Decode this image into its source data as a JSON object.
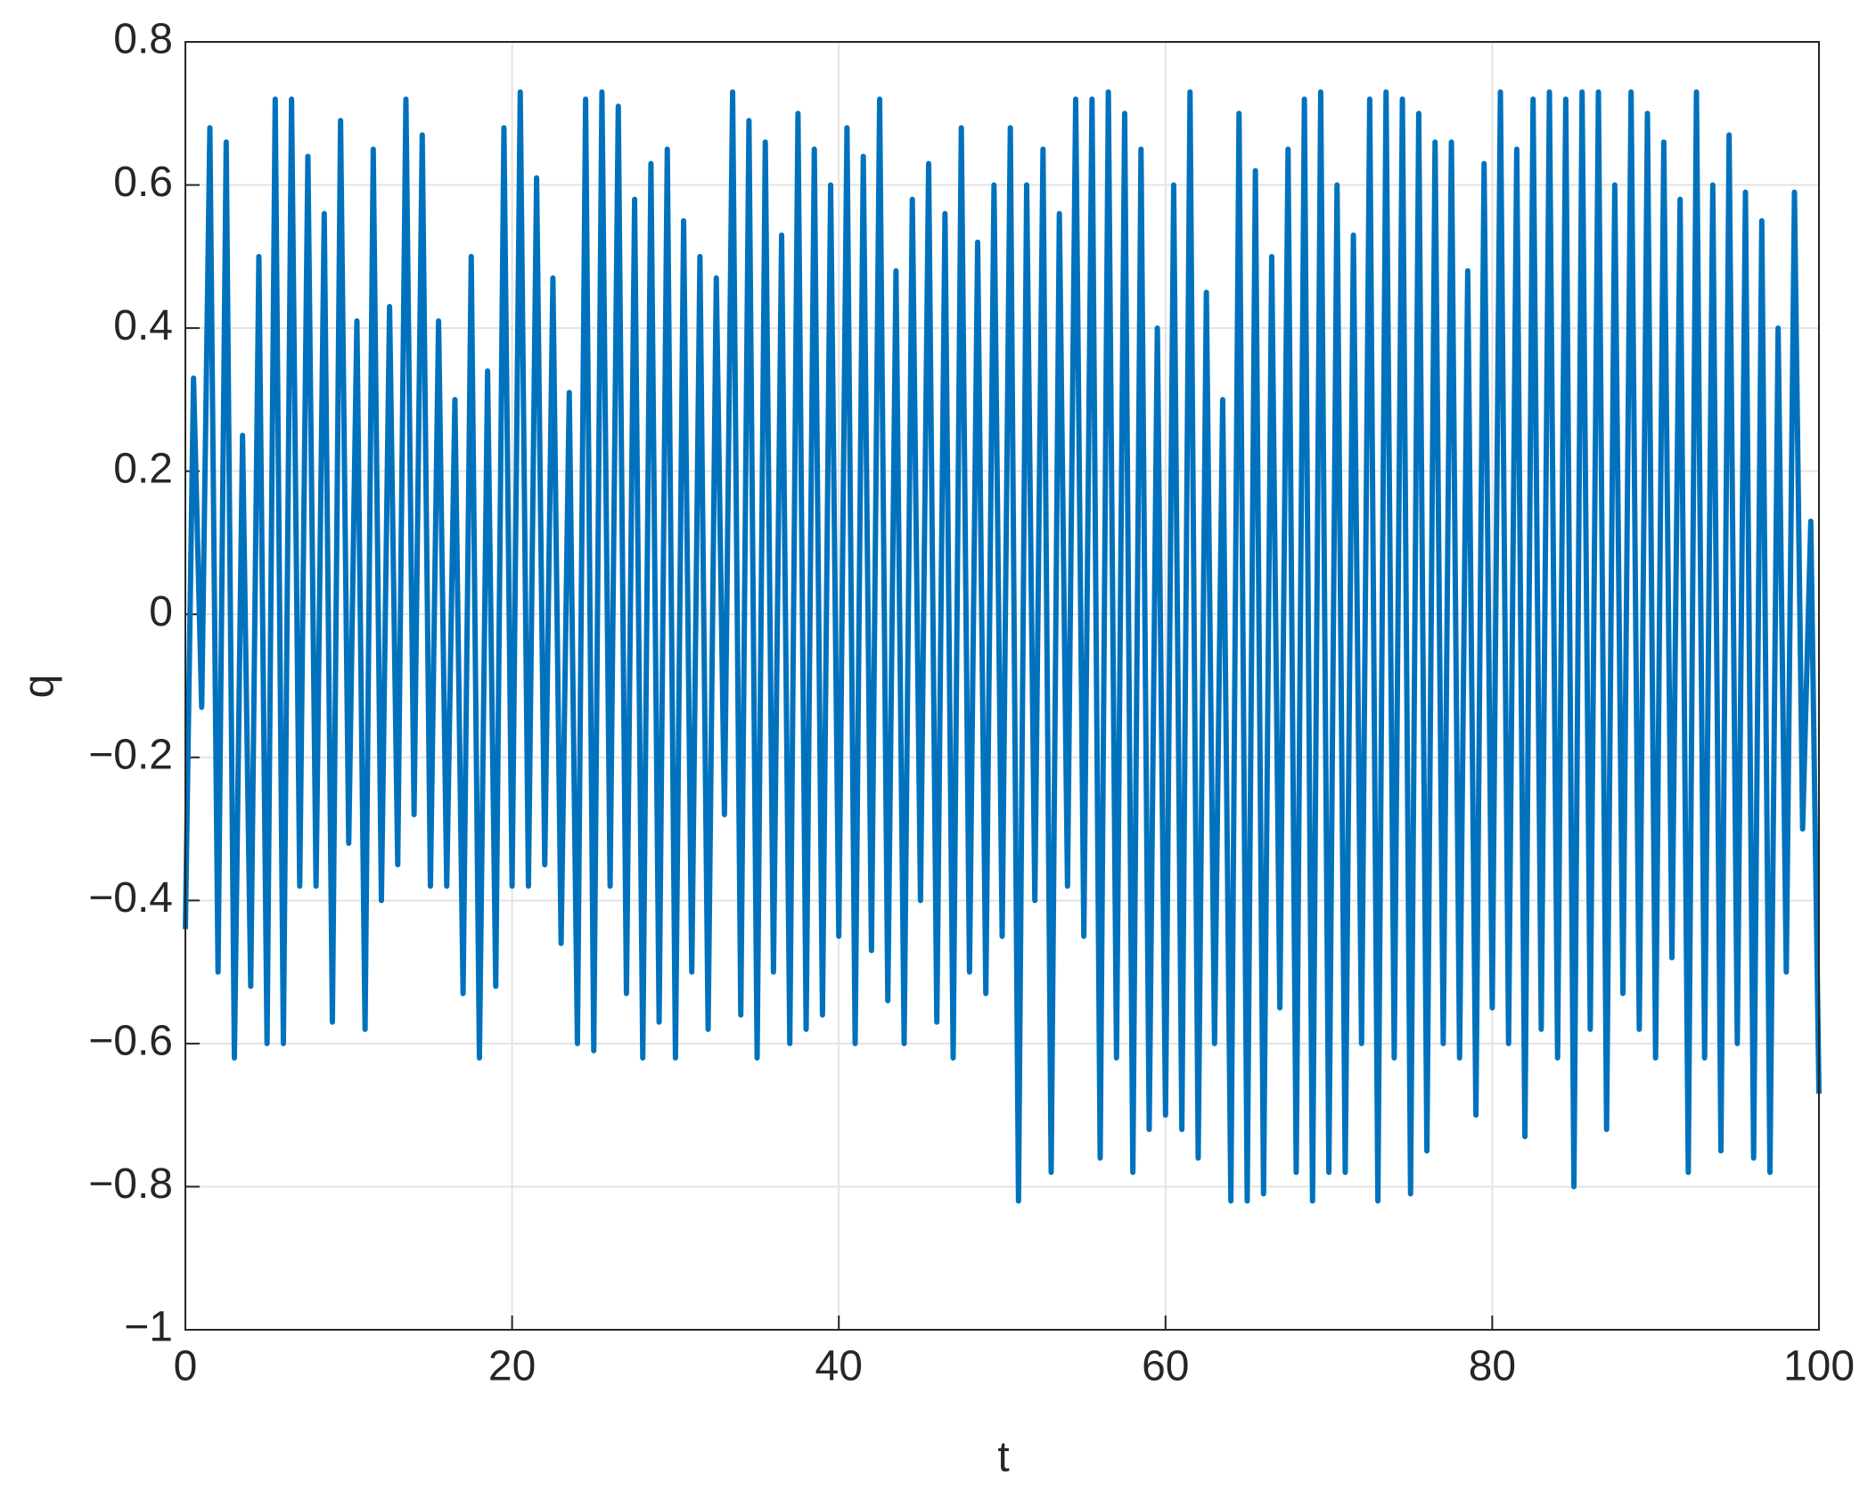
{
  "chart_data": {
    "type": "line",
    "xlabel": "t",
    "ylabel": "q",
    "xlim": [
      0,
      100
    ],
    "xticks": [
      0,
      20,
      40,
      60,
      80,
      100
    ],
    "ylim": [
      -1,
      0.8
    ],
    "yticks": [
      {
        "value": -1,
        "label": "−1"
      },
      {
        "value": -0.8,
        "label": "−0.8"
      },
      {
        "value": -0.6,
        "label": "−0.6"
      },
      {
        "value": -0.4,
        "label": "−0.4"
      },
      {
        "value": -0.2,
        "label": "−0.2"
      },
      0,
      0.2,
      0.4,
      0.6,
      0.8
    ],
    "grid": true,
    "x": [
      0,
      0.5,
      1,
      1.5,
      2,
      2.5,
      3,
      3.5,
      4,
      4.5,
      5,
      5.5,
      6,
      6.5,
      7,
      7.5,
      8,
      8.5,
      9,
      9.5,
      10,
      10.5,
      11,
      11.5,
      12,
      12.5,
      13,
      13.5,
      14,
      14.5,
      15,
      15.5,
      16,
      16.5,
      17,
      17.5,
      18,
      18.5,
      19,
      19.5,
      20,
      20.5,
      21,
      21.5,
      22,
      22.5,
      23,
      23.5,
      24,
      24.5,
      25,
      25.5,
      26,
      26.5,
      27,
      27.5,
      28,
      28.5,
      29,
      29.5,
      30,
      30.5,
      31,
      31.5,
      32,
      32.5,
      33,
      33.5,
      34,
      34.5,
      35,
      35.5,
      36,
      36.5,
      37,
      37.5,
      38,
      38.5,
      39,
      39.5,
      40,
      40.5,
      41,
      41.5,
      42,
      42.5,
      43,
      43.5,
      44,
      44.5,
      45,
      45.5,
      46,
      46.5,
      47,
      47.5,
      48,
      48.5,
      49,
      49.5,
      50,
      50.5,
      51,
      51.5,
      52,
      52.5,
      53,
      53.5,
      54,
      54.5,
      55,
      55.5,
      56,
      56.5,
      57,
      57.5,
      58,
      58.5,
      59,
      59.5,
      60,
      60.5,
      61,
      61.5,
      62,
      62.5,
      63,
      63.5,
      64,
      64.5,
      65,
      65.5,
      66,
      66.5,
      67,
      67.5,
      68,
      68.5,
      69,
      69.5,
      70,
      70.5,
      71,
      71.5,
      72,
      72.5,
      73,
      73.5,
      74,
      74.5,
      75,
      75.5,
      76,
      76.5,
      77,
      77.5,
      78,
      78.5,
      79,
      79.5,
      80,
      80.5,
      81,
      81.5,
      82,
      82.5,
      83,
      83.5,
      84,
      84.5,
      85,
      85.5,
      86,
      86.5,
      87,
      87.5,
      88,
      88.5,
      89,
      89.5,
      90,
      90.5,
      91,
      91.5,
      92,
      92.5,
      93,
      93.5,
      94,
      94.5,
      95,
      95.5,
      96,
      96.5,
      97,
      97.5,
      98,
      98.5,
      99,
      99.5,
      100
    ],
    "series": [
      {
        "color": "#0072bd",
        "values": [
          -0.44,
          0.33,
          -0.13,
          0.68,
          -0.5,
          0.66,
          -0.62,
          0.25,
          -0.52,
          0.5,
          -0.6,
          0.72,
          -0.6,
          0.72,
          -0.38,
          0.64,
          -0.38,
          0.56,
          -0.57,
          0.69,
          -0.32,
          0.41,
          -0.58,
          0.65,
          -0.4,
          0.43,
          -0.35,
          0.72,
          -0.28,
          0.67,
          -0.38,
          0.41,
          -0.38,
          0.3,
          -0.53,
          0.5,
          -0.62,
          0.34,
          -0.52,
          0.68,
          -0.38,
          0.73,
          -0.38,
          0.61,
          -0.35,
          0.47,
          -0.46,
          0.31,
          -0.6,
          0.72,
          -0.61,
          0.73,
          -0.38,
          0.71,
          -0.53,
          0.58,
          -0.62,
          0.63,
          -0.57,
          0.65,
          -0.62,
          0.55,
          -0.5,
          0.5,
          -0.58,
          0.47,
          -0.28,
          0.73,
          -0.56,
          0.69,
          -0.62,
          0.66,
          -0.5,
          0.53,
          -0.6,
          0.7,
          -0.58,
          0.65,
          -0.56,
          0.6,
          -0.45,
          0.68,
          -0.6,
          0.64,
          -0.47,
          0.72,
          -0.54,
          0.48,
          -0.6,
          0.58,
          -0.4,
          0.63,
          -0.57,
          0.56,
          -0.62,
          0.68,
          -0.5,
          0.52,
          -0.53,
          0.6,
          -0.45,
          0.68,
          -0.82,
          0.6,
          -0.4,
          0.65,
          -0.78,
          0.56,
          -0.38,
          0.72,
          -0.45,
          0.72,
          -0.76,
          0.73,
          -0.62,
          0.7,
          -0.78,
          0.65,
          -0.72,
          0.4,
          -0.7,
          0.6,
          -0.72,
          0.73,
          -0.76,
          0.45,
          -0.6,
          0.3,
          -0.82,
          0.7,
          -0.82,
          0.62,
          -0.81,
          0.5,
          -0.55,
          0.65,
          -0.78,
          0.72,
          -0.82,
          0.73,
          -0.78,
          0.6,
          -0.78,
          0.53,
          -0.6,
          0.72,
          -0.82,
          0.73,
          -0.62,
          0.72,
          -0.81,
          0.7,
          -0.75,
          0.66,
          -0.6,
          0.66,
          -0.62,
          0.48,
          -0.7,
          0.63,
          -0.55,
          0.73,
          -0.6,
          0.65,
          -0.73,
          0.72,
          -0.58,
          0.73,
          -0.62,
          0.72,
          -0.8,
          0.73,
          -0.58,
          0.73,
          -0.72,
          0.6,
          -0.53,
          0.73,
          -0.58,
          0.7,
          -0.62,
          0.66,
          -0.48,
          0.58,
          -0.78,
          0.73,
          -0.62,
          0.6,
          -0.75,
          0.67,
          -0.6,
          0.59,
          -0.76,
          0.55,
          -0.78,
          0.4,
          -0.5,
          0.59,
          -0.3,
          0.13,
          -0.67
        ]
      }
    ]
  }
}
